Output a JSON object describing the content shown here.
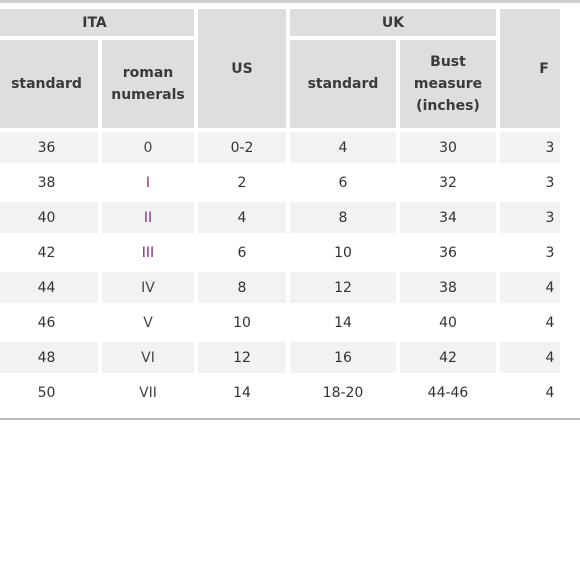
{
  "table": {
    "groups": {
      "ita": "ITA",
      "us": "US",
      "uk": "UK",
      "fr": "F"
    },
    "subheaders": {
      "ita_standard": "standard",
      "ita_roman": "roman numerals",
      "uk_standard": "standard",
      "uk_bust": "Bust measure (inches)"
    },
    "rows": [
      {
        "ita_standard": "36",
        "ita_roman": "0",
        "us": "0-2",
        "uk_standard": "4",
        "uk_bust": "30",
        "fr": "3"
      },
      {
        "ita_standard": "38",
        "ita_roman": "I",
        "us": "2",
        "uk_standard": "6",
        "uk_bust": "32",
        "fr": "3"
      },
      {
        "ita_standard": "40",
        "ita_roman": "II",
        "us": "4",
        "uk_standard": "8",
        "uk_bust": "34",
        "fr": "3"
      },
      {
        "ita_standard": "42",
        "ita_roman": "III",
        "us": "6",
        "uk_standard": "10",
        "uk_bust": "36",
        "fr": "3"
      },
      {
        "ita_standard": "44",
        "ita_roman": "IV",
        "us": "8",
        "uk_standard": "12",
        "uk_bust": "38",
        "fr": "4"
      },
      {
        "ita_standard": "46",
        "ita_roman": "V",
        "us": "10",
        "uk_standard": "14",
        "uk_bust": "40",
        "fr": "4"
      },
      {
        "ita_standard": "48",
        "ita_roman": "VI",
        "us": "12",
        "uk_standard": "16",
        "uk_bust": "42",
        "fr": "4"
      },
      {
        "ita_standard": "50",
        "ita_roman": "VII",
        "us": "14",
        "uk_standard": "18-20",
        "uk_bust": "44-46",
        "fr": "4"
      }
    ]
  },
  "colors": {
    "header_bg": "#dedede",
    "row_shade": "#f2f2f2",
    "roman_accent": "#8b2a86"
  }
}
